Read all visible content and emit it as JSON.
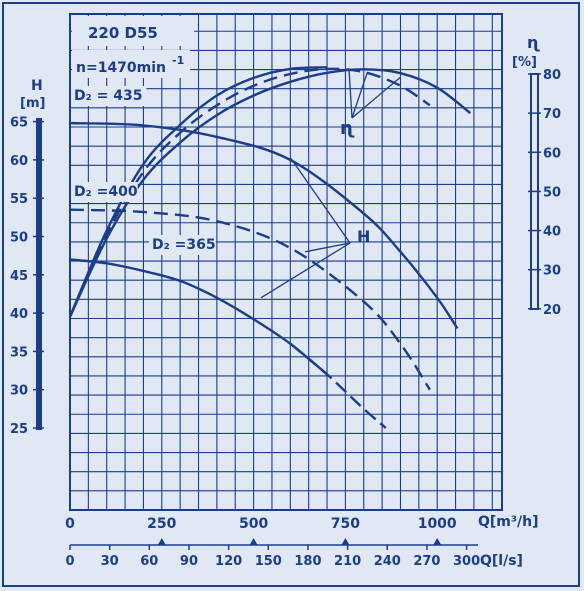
{
  "labels": {
    "model": "220 D55",
    "speed": "n=1470min",
    "speed_exp": "-1"
  },
  "colors": {
    "ink": "#1c3d8c",
    "paper": "#dfe8f3"
  },
  "chart_data": {
    "type": "line",
    "grid": true,
    "axes": {
      "q_m3h": {
        "label": "Q[m³/h]",
        "ticks": [
          0,
          250,
          500,
          750,
          1000
        ],
        "range": [
          0,
          1200
        ]
      },
      "q_ls": {
        "label": "Q[l/s]",
        "ticks": [
          0,
          30,
          60,
          90,
          120,
          150,
          180,
          210,
          240,
          270,
          300
        ],
        "range": [
          0,
          333.3
        ]
      },
      "h": {
        "symbol": "H",
        "unit": "[m]",
        "ticks": [
          25,
          30,
          35,
          40,
          45,
          50,
          55,
          60,
          65
        ],
        "range": [
          25,
          66
        ]
      },
      "eta": {
        "symbol": "ɳ",
        "unit": "[%]",
        "ticks": [
          20,
          30,
          40,
          50,
          60,
          70,
          80
        ],
        "range": [
          20,
          80
        ]
      }
    },
    "series": [
      {
        "name": "D₂ = 435",
        "kind": "head",
        "dash": false,
        "x": [
          0,
          200,
          400,
          600,
          800,
          900,
          1000,
          1055
        ],
        "y": [
          64.8,
          64.5,
          63.0,
          60.0,
          53.0,
          48.0,
          42.0,
          38.0
        ]
      },
      {
        "name": "D₂ = 400",
        "kind": "head",
        "dash": true,
        "x": [
          0,
          200,
          400,
          600,
          800,
          900,
          980
        ],
        "y": [
          53.5,
          53.2,
          52.0,
          48.5,
          41.5,
          36.0,
          30.0
        ]
      },
      {
        "name": "D₂ = 365",
        "kind": "head",
        "dash": false,
        "dash_tail_from": 700,
        "x": [
          0,
          100,
          200,
          300,
          400,
          500,
          600,
          700,
          800,
          860
        ],
        "y": [
          47.0,
          46.5,
          45.5,
          44.2,
          42.0,
          39.2,
          36.0,
          32.0,
          27.5,
          25.0
        ]
      },
      {
        "name": "η D₂ = 435",
        "kind": "efficiency",
        "dash": false,
        "x": [
          0,
          100,
          200,
          300,
          400,
          500,
          600,
          700,
          800,
          900,
          1000,
          1090
        ],
        "y": [
          18,
          38,
          53,
          62.5,
          69.5,
          74.5,
          78,
          80.3,
          81.2,
          80.2,
          76.5,
          70
        ]
      },
      {
        "name": "η D₂ = 400",
        "kind": "efficiency",
        "dash": true,
        "x": [
          0,
          100,
          200,
          300,
          400,
          500,
          600,
          700,
          800,
          900,
          980
        ],
        "y": [
          18,
          39,
          55,
          65,
          72,
          77,
          80,
          81.3,
          80.5,
          77,
          72
        ]
      },
      {
        "name": "η D₂ = 365",
        "kind": "efficiency",
        "dash": false,
        "x": [
          0,
          100,
          200,
          300,
          400,
          500,
          600,
          700
        ],
        "y": [
          18,
          40,
          57,
          67,
          74.5,
          79,
          81.3,
          81.7
        ]
      }
    ],
    "annotations": {
      "eta_marker": "ɳ",
      "h_marker": "H",
      "d435": "D₂ = 435",
      "d400": "D₂ =400",
      "d365": "D₂ =365"
    }
  }
}
